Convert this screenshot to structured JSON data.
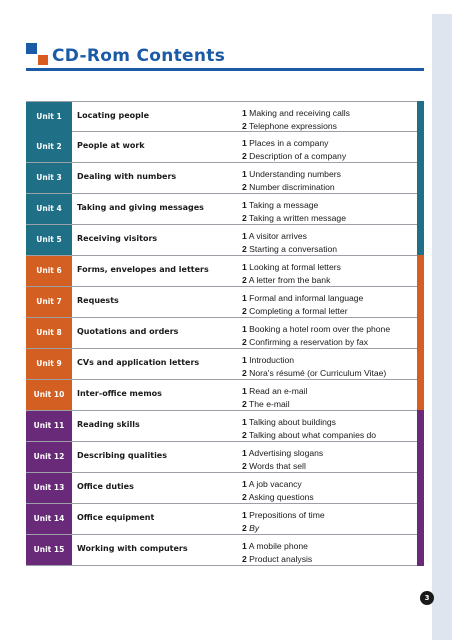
{
  "header": {
    "title": "CD-Rom Contents"
  },
  "colors": {
    "blue": "#1f6f86",
    "orange": "#d35f22",
    "purple": "#6a2a7a",
    "title_blue": "#1b5aa6"
  },
  "units": [
    {
      "unit": "Unit 1",
      "topic": "Locating people",
      "color": "blue",
      "tracks": [
        {
          "num": "1",
          "text": "Making and receiving calls"
        },
        {
          "num": "2",
          "text": "Telephone expressions"
        }
      ]
    },
    {
      "unit": "Unit 2",
      "topic": "People at work",
      "color": "blue",
      "tracks": [
        {
          "num": "1",
          "text": "Places in a company"
        },
        {
          "num": "2",
          "text": "Description of a company"
        }
      ]
    },
    {
      "unit": "Unit 3",
      "topic": "Dealing with numbers",
      "color": "blue",
      "tracks": [
        {
          "num": "1",
          "text": "Understanding numbers"
        },
        {
          "num": "2",
          "text": "Number discrimination"
        }
      ]
    },
    {
      "unit": "Unit 4",
      "topic": "Taking and giving messages",
      "color": "blue",
      "tracks": [
        {
          "num": "1",
          "text": "Taking a message"
        },
        {
          "num": "2",
          "text": "Taking a written message"
        }
      ]
    },
    {
      "unit": "Unit 5",
      "topic": "Receiving visitors",
      "color": "blue",
      "tracks": [
        {
          "num": "1",
          "text": "A visitor arrives"
        },
        {
          "num": "2",
          "text": "Starting a conversation"
        }
      ]
    },
    {
      "unit": "Unit 6",
      "topic": "Forms, envelopes and letters",
      "color": "orange",
      "tracks": [
        {
          "num": "1",
          "text": "Looking at formal letters"
        },
        {
          "num": "2",
          "text": "A letter from the bank"
        }
      ]
    },
    {
      "unit": "Unit 7",
      "topic": "Requests",
      "color": "orange",
      "tracks": [
        {
          "num": "1",
          "text": "Formal and informal language"
        },
        {
          "num": "2",
          "text": "Completing a formal letter"
        }
      ]
    },
    {
      "unit": "Unit 8",
      "topic": "Quotations and orders",
      "color": "orange",
      "tracks": [
        {
          "num": "1",
          "text": "Booking a hotel room over the phone"
        },
        {
          "num": "2",
          "text": "Confirming a reservation by fax"
        }
      ]
    },
    {
      "unit": "Unit 9",
      "topic": "CVs and application letters",
      "color": "orange",
      "tracks": [
        {
          "num": "1",
          "text": "Introduction"
        },
        {
          "num": "2",
          "text": "Nora's résumé (or Curriculum Vitae)"
        }
      ]
    },
    {
      "unit": "Unit 10",
      "topic": "Inter-office memos",
      "color": "orange",
      "tracks": [
        {
          "num": "1",
          "text": "Read an e-mail"
        },
        {
          "num": "2",
          "text": "The e-mail"
        }
      ]
    },
    {
      "unit": "Unit 11",
      "topic": "Reading skills",
      "color": "purple",
      "tracks": [
        {
          "num": "1",
          "text": "Talking about buildings"
        },
        {
          "num": "2",
          "text": "Talking about what companies do"
        }
      ]
    },
    {
      "unit": "Unit 12",
      "topic": "Describing qualities",
      "color": "purple",
      "tracks": [
        {
          "num": "1",
          "text": "Advertising slogans"
        },
        {
          "num": "2",
          "text": "Words that sell"
        }
      ]
    },
    {
      "unit": "Unit 13",
      "topic": "Office duties",
      "color": "purple",
      "tracks": [
        {
          "num": "1",
          "text": "A job vacancy"
        },
        {
          "num": "2",
          "text": "Asking questions"
        }
      ]
    },
    {
      "unit": "Unit 14",
      "topic": "Office equipment",
      "color": "purple",
      "tracks": [
        {
          "num": "1",
          "text": "Prepositions of time"
        },
        {
          "num": "2",
          "text": "By",
          "italic": true
        }
      ]
    },
    {
      "unit": "Unit 15",
      "topic": "Working with computers",
      "color": "purple",
      "tracks": [
        {
          "num": "1",
          "text": "A mobile phone"
        },
        {
          "num": "2",
          "text": "Product analysis"
        }
      ]
    }
  ],
  "footer": {
    "page_number": "3"
  }
}
